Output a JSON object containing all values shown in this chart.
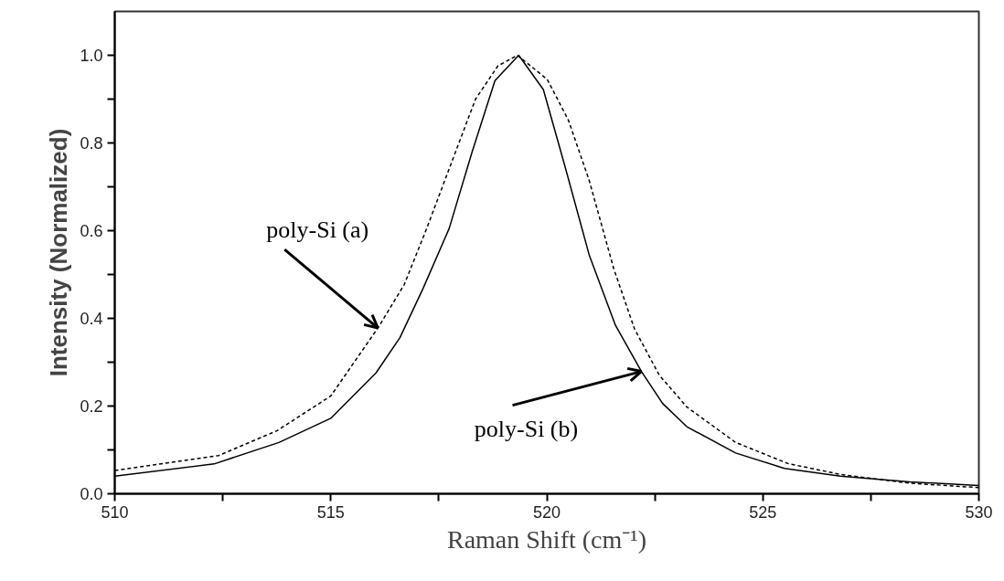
{
  "chart_data": {
    "type": "line",
    "xlabel": "Raman Shift (cm⁻¹)",
    "ylabel": "Intensity (Normalized)",
    "xlim": [
      510,
      530
    ],
    "ylim": [
      0,
      1.1
    ],
    "xticks": [
      510,
      {
        "value": 512.5,
        "label": null
      },
      515,
      {
        "value": 517.5,
        "label": null
      },
      520,
      {
        "value": 522.5,
        "label": null
      },
      525,
      {
        "value": 527.5,
        "label": null
      },
      530
    ],
    "yticks": [
      {
        "value": 0,
        "label": "0.0"
      },
      {
        "value": 0.1,
        "label": null
      },
      0.2,
      {
        "value": 0.3,
        "label": null
      },
      0.4,
      {
        "value": 0.5,
        "label": null
      },
      0.6,
      {
        "value": 0.7,
        "label": null
      },
      0.8,
      {
        "value": 0.9,
        "label": null
      },
      {
        "value": 1,
        "label": "1.0"
      }
    ],
    "grid": false,
    "annotations": [
      {
        "text": "poly-Si (a)",
        "x": 516.09,
        "y": 0.378
      },
      {
        "text": "poly-Si (b)",
        "x": 522.19,
        "y": 0.279
      }
    ],
    "series": [
      {
        "color": "#000000",
        "line_style": "dotted",
        "x": [
          510,
          512.4,
          513.76,
          515,
          516.09,
          516.7,
          517.22,
          517.74,
          518.35,
          518.87,
          519.32,
          520.01,
          520.5,
          520.98,
          521.55,
          522.03,
          522.6,
          523.24,
          524.37,
          525.58,
          526.8,
          528.4,
          530
        ],
        "values": [
          0.053,
          0.087,
          0.144,
          0.223,
          0.378,
          0.477,
          0.605,
          0.741,
          0.9,
          0.976,
          1.0,
          0.945,
          0.852,
          0.715,
          0.513,
          0.376,
          0.271,
          0.198,
          0.117,
          0.069,
          0.044,
          0.024,
          0.014
        ]
      },
      {
        "color": "#000000",
        "line_style": "solid",
        "x": [
          510,
          512.3,
          513.8,
          515,
          516.05,
          516.6,
          517.14,
          517.74,
          518.27,
          518.8,
          519.35,
          519.92,
          520.42,
          520.98,
          521.59,
          522.19,
          522.68,
          523.24,
          524.37,
          525.5,
          526.8,
          528.4,
          530
        ],
        "values": [
          0.04,
          0.068,
          0.117,
          0.172,
          0.276,
          0.356,
          0.469,
          0.605,
          0.779,
          0.942,
          1.0,
          0.922,
          0.747,
          0.545,
          0.384,
          0.279,
          0.206,
          0.153,
          0.093,
          0.058,
          0.04,
          0.027,
          0.019
        ]
      }
    ]
  }
}
